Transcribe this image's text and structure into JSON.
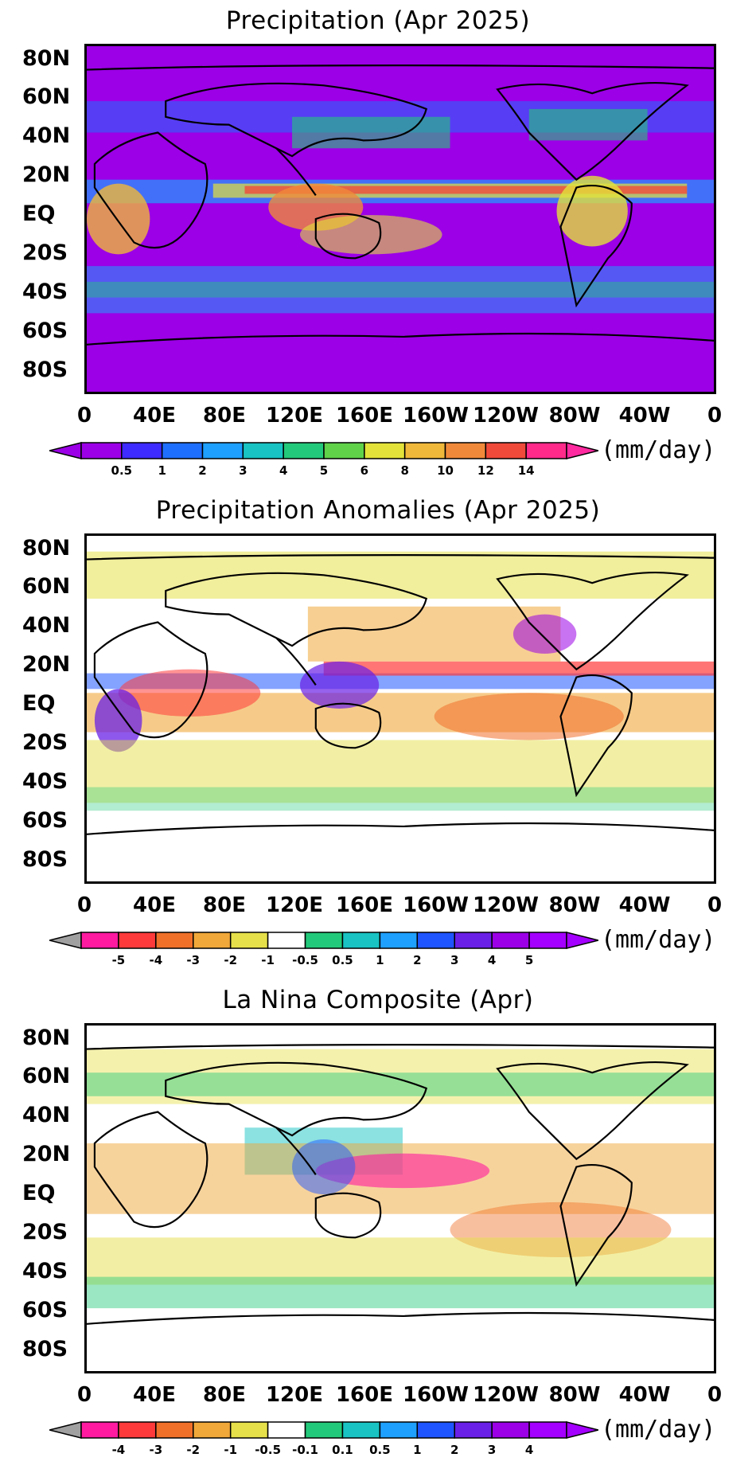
{
  "panels": [
    {
      "title": "Precipitation (Apr 2025)",
      "units": "(mm/day)",
      "lat_labels": [
        "80N",
        "60N",
        "40N",
        "20N",
        "EQ",
        "20S",
        "40S",
        "60S",
        "80S"
      ],
      "lon_labels": [
        "0",
        "40E",
        "80E",
        "120E",
        "160E",
        "160W",
        "120W",
        "80W",
        "40W",
        "0"
      ],
      "colorbar": {
        "levels": [
          "0.5",
          "1",
          "2",
          "3",
          "4",
          "5",
          "6",
          "8",
          "10",
          "12",
          "14"
        ],
        "colors": [
          "#9b00e6",
          "#3d2bff",
          "#1f6fff",
          "#1ea0ff",
          "#19c3c3",
          "#23c97a",
          "#5fd24a",
          "#e2e23a",
          "#f0b83a",
          "#f08a3a",
          "#f04a3a",
          "#ff2a8a"
        ],
        "under_color": "#9b00e6",
        "over_color": "#ff2aa0"
      }
    },
    {
      "title": "Precipitation Anomalies (Apr 2025)",
      "units": "(mm/day)",
      "lat_labels": [
        "80N",
        "60N",
        "40N",
        "20N",
        "EQ",
        "20S",
        "40S",
        "60S",
        "80S"
      ],
      "lon_labels": [
        "0",
        "40E",
        "80E",
        "120E",
        "160E",
        "160W",
        "120W",
        "80W",
        "40W",
        "0"
      ],
      "colorbar": {
        "levels": [
          "-5",
          "-4",
          "-3",
          "-2",
          "-1",
          "-0.5",
          "0.5",
          "1",
          "2",
          "3",
          "4",
          "5"
        ],
        "colors": [
          "#ff1aa0",
          "#ff3a3a",
          "#f0702a",
          "#f0a83a",
          "#e6e04a",
          "#ffffff",
          "#23c97a",
          "#19c3c3",
          "#1ea0ff",
          "#1f55ff",
          "#6a20e6",
          "#9b00e6",
          "#a400ff"
        ],
        "under_color": "#a0a0a0",
        "over_color": "#a400ff"
      }
    },
    {
      "title": "La Nina Composite (Apr)",
      "units": "(mm/day)",
      "lat_labels": [
        "80N",
        "60N",
        "40N",
        "20N",
        "EQ",
        "20S",
        "40S",
        "60S",
        "80S"
      ],
      "lon_labels": [
        "0",
        "40E",
        "80E",
        "120E",
        "160E",
        "160W",
        "120W",
        "80W",
        "40W",
        "0"
      ],
      "colorbar": {
        "levels": [
          "-4",
          "-3",
          "-2",
          "-1",
          "-0.5",
          "-0.1",
          "0.1",
          "0.5",
          "1",
          "2",
          "3",
          "4"
        ],
        "colors": [
          "#ff1aa0",
          "#ff3a3a",
          "#f0702a",
          "#f0a83a",
          "#e6e04a",
          "#ffffff",
          "#23c97a",
          "#19c3c3",
          "#1ea0ff",
          "#1f55ff",
          "#6a20e6",
          "#9b00e6",
          "#a400ff"
        ],
        "under_color": "#a0a0a0",
        "over_color": "#a400ff"
      }
    }
  ]
}
